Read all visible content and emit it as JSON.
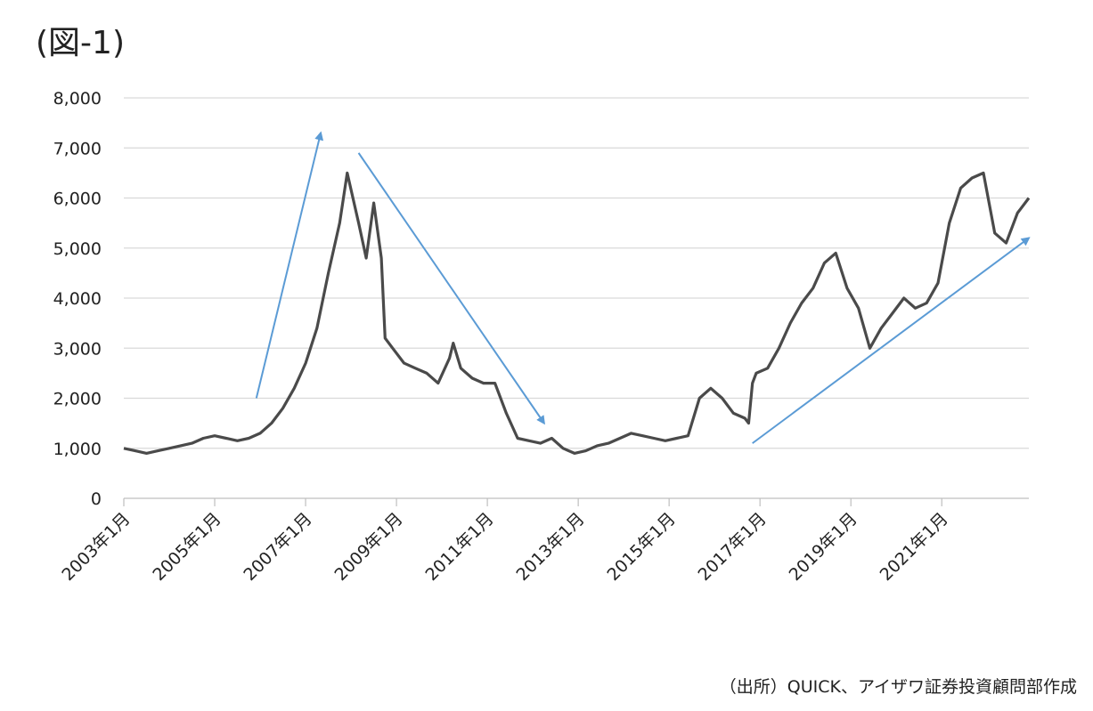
{
  "title": "(図-1)",
  "source": "（出所）QUICK、アイザワ証券投資顧問部作成",
  "colors": {
    "line": "#4a4a4a",
    "arrow": "#5b9bd5",
    "grid": "#d9d9d9",
    "axis": "#bfbfbf"
  },
  "chart_data": {
    "type": "line",
    "title": "",
    "xlabel": "",
    "ylabel": "",
    "x_range": [
      "2003-01",
      "2022-12"
    ],
    "ylim": [
      0,
      8000
    ],
    "y_ticks": [
      0,
      1000,
      2000,
      3000,
      4000,
      5000,
      6000,
      7000,
      8000
    ],
    "y_tick_labels": [
      "0",
      "1,000",
      "2,000",
      "3,000",
      "4,000",
      "5,000",
      "6,000",
      "7,000",
      "8,000"
    ],
    "x_ticks": [
      "2003-01",
      "2005-01",
      "2007-01",
      "2009-01",
      "2011-01",
      "2013-01",
      "2015-01",
      "2017-01",
      "2019-01",
      "2021-01"
    ],
    "x_tick_labels": [
      "2003年1月",
      "2005年1月",
      "2007年1月",
      "2009年1月",
      "2011年1月",
      "2013年1月",
      "2015年1月",
      "2017年1月",
      "2019年1月",
      "2021年1月"
    ],
    "grid": "horizontal",
    "legend": "none",
    "series": [
      {
        "x": [
          "2003-01",
          "2003-04",
          "2003-07",
          "2003-10",
          "2004-01",
          "2004-04",
          "2004-07",
          "2004-10",
          "2005-01",
          "2005-04",
          "2005-07",
          "2005-10",
          "2006-01",
          "2006-04",
          "2006-07",
          "2006-10",
          "2007-01",
          "2007-04",
          "2007-07",
          "2007-10",
          "2007-12",
          "2008-03",
          "2008-05",
          "2008-07",
          "2008-09",
          "2008-10",
          "2008-12",
          "2009-03",
          "2009-06",
          "2009-09",
          "2009-12",
          "2010-03",
          "2010-04",
          "2010-06",
          "2010-09",
          "2010-12",
          "2011-03",
          "2011-06",
          "2011-09",
          "2011-12",
          "2012-03",
          "2012-06",
          "2012-09",
          "2012-12",
          "2013-03",
          "2013-06",
          "2013-09",
          "2013-12",
          "2014-03",
          "2014-06",
          "2014-09",
          "2014-12",
          "2015-03",
          "2015-06",
          "2015-09",
          "2015-12",
          "2016-03",
          "2016-06",
          "2016-09",
          "2016-10",
          "2016-11",
          "2016-12",
          "2017-03",
          "2017-06",
          "2017-09",
          "2017-12",
          "2018-03",
          "2018-06",
          "2018-09",
          "2018-12",
          "2019-03",
          "2019-06",
          "2019-09",
          "2019-12",
          "2020-03",
          "2020-06",
          "2020-09",
          "2020-12",
          "2021-03",
          "2021-06",
          "2021-09",
          "2021-12",
          "2022-03",
          "2022-06",
          "2022-09",
          "2022-12"
        ],
        "y": [
          1000,
          950,
          900,
          950,
          1000,
          1050,
          1100,
          1200,
          1250,
          1200,
          1150,
          1200,
          1300,
          1500,
          1800,
          2200,
          2700,
          3400,
          4500,
          5500,
          6500,
          5500,
          4800,
          5900,
          4800,
          3200,
          3000,
          2700,
          2600,
          2500,
          2300,
          2800,
          3100,
          2600,
          2400,
          2300,
          2300,
          1700,
          1200,
          1150,
          1100,
          1200,
          1000,
          900,
          950,
          1050,
          1100,
          1200,
          1300,
          1250,
          1200,
          1150,
          1200,
          1250,
          2000,
          2200,
          2000,
          1700,
          1600,
          1500,
          2300,
          2500,
          2600,
          3000,
          3500,
          3900,
          4200,
          4700,
          4900,
          4200,
          3800,
          3000,
          3400,
          3700,
          4000,
          3800,
          3900,
          4300,
          5500,
          6200,
          6400,
          6500,
          5300,
          5100,
          5700,
          6000
        ]
      }
    ]
  },
  "annotations": [
    {
      "type": "arrow",
      "from": [
        "2005-12",
        2000
      ],
      "to": [
        "2007-05",
        7300
      ]
    },
    {
      "type": "arrow",
      "from": [
        "2008-03",
        6900
      ],
      "to": [
        "2012-04",
        1500
      ]
    },
    {
      "type": "arrow",
      "from": [
        "2016-11",
        1100
      ],
      "to": [
        "2022-12",
        5200
      ]
    }
  ]
}
